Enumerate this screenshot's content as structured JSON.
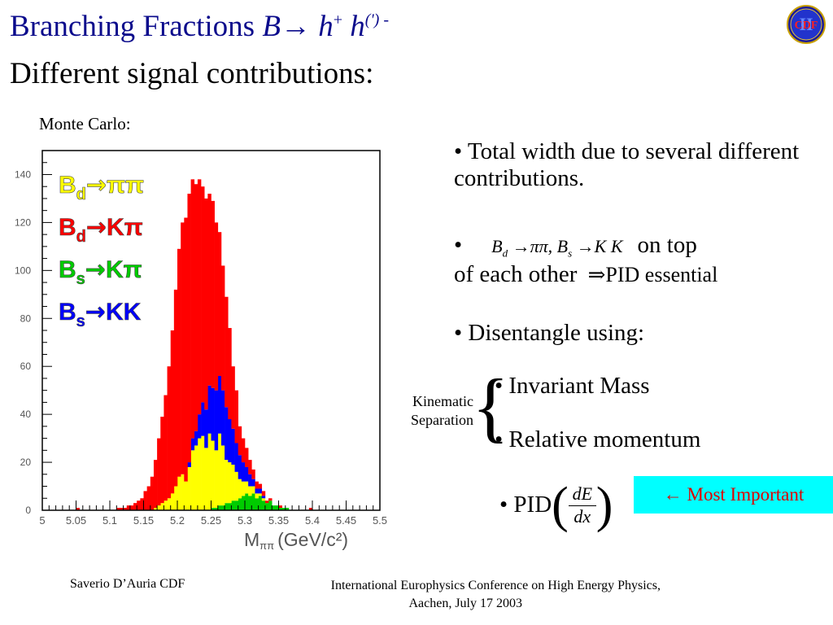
{
  "slide": {
    "title_main": "Branching Fractions ",
    "title_B": "B",
    "title_arrow": "→",
    "title_h1": " h",
    "title_sup1": "+",
    "title_h2": " h",
    "title_sup2": "(') -",
    "subtitle": "Different signal contributions:",
    "logo_text": "CDF",
    "logo_numeral": "II",
    "mc_label": "Monte Carlo:"
  },
  "bullets": {
    "b1": "• Total width due to several different contributions.",
    "b2_marker": "•",
    "b2_math": "B_d → ππ, B_s → K K",
    "b2_tail": "on top",
    "b2_line2": "of each other",
    "b2_implies": "⇒PID essential",
    "b3": "•  Disentangle using:",
    "b4": "• Invariant Mass",
    "b5": "• Relative momentum",
    "b6_marker": "•  PID",
    "b6_num": "dE",
    "b6_den": "dx",
    "kinematic_line1": "Kinematic",
    "kinematic_line2": "Separation",
    "most_important": "← Most Important"
  },
  "footer": {
    "left": "Saverio D’Auria CDF",
    "right_line1": "International Europhysics Conference on High Energy Physics,",
    "right_line2": "Aachen, July 17 2003"
  },
  "chart_data": {
    "type": "bar",
    "subtype": "stacked-histogram",
    "xlabel": "M",
    "xlabel_sub": "ππ",
    "xlabel_units": "(GeV/c²)",
    "ylabel": "",
    "xlim": [
      5.0,
      5.5
    ],
    "ylim": [
      0,
      150
    ],
    "x_ticks": [
      "5",
      "5.05",
      "5.1",
      "5.15",
      "5.2",
      "5.25",
      "5.3",
      "5.35",
      "5.4",
      "5.45",
      "5.5"
    ],
    "y_ticks": [
      "0",
      "20",
      "40",
      "60",
      "80",
      "100",
      "120",
      "140"
    ],
    "legend_placement": "top-left",
    "bin_width": 0.005,
    "bin_edges_start": 5.0,
    "colors": {
      "Bd_pipi": "#ffff00",
      "Bd_Kpi": "#ff0000",
      "Bs_Kpi": "#00cc00",
      "Bs_KK": "#0000ff"
    },
    "legend": [
      {
        "prefix": "B",
        "sub": "d",
        "arrow": "→",
        "final": "ππ",
        "color": "#ffff00"
      },
      {
        "prefix": "B",
        "sub": "d",
        "arrow": "→",
        "final": "Kπ",
        "color": "#ff0000"
      },
      {
        "prefix": "B",
        "sub": "s",
        "arrow": "→",
        "final": "Kπ",
        "color": "#00cc00"
      },
      {
        "prefix": "B",
        "sub": "s",
        "arrow": "→",
        "final": "KK",
        "color": "#0000ff"
      }
    ],
    "series": [
      {
        "name": "Bs→Kπ",
        "color": "#00cc00",
        "values": [
          0,
          0,
          0,
          0,
          0,
          0,
          0,
          0,
          0,
          0,
          0,
          0,
          0,
          0,
          0,
          0,
          0,
          0,
          0,
          0,
          0,
          0,
          0,
          0,
          0,
          0,
          0,
          0,
          0,
          0,
          0,
          0,
          0,
          0,
          0,
          0,
          0,
          0,
          0,
          0,
          0,
          0,
          0,
          0,
          0,
          0,
          0,
          0,
          0,
          0,
          1,
          1,
          2,
          2,
          3,
          3,
          4,
          4,
          5,
          6,
          7,
          6,
          7,
          5,
          6,
          4,
          3,
          4,
          2,
          2,
          1,
          1,
          1,
          0,
          0,
          0,
          0,
          0,
          0,
          0,
          0,
          0,
          0,
          0,
          0,
          0,
          0,
          0,
          0,
          0,
          0,
          0,
          0,
          0,
          0,
          0,
          0,
          0,
          0,
          0
        ]
      },
      {
        "name": "Bd→ππ",
        "color": "#ffff00",
        "values": [
          0,
          0,
          0,
          0,
          0,
          0,
          0,
          0,
          0,
          0,
          0,
          0,
          0,
          0,
          0,
          0,
          0,
          0,
          0,
          0,
          0,
          0,
          0,
          0,
          0,
          0,
          0,
          0,
          0,
          0,
          0,
          0,
          0,
          1,
          2,
          3,
          4,
          5,
          7,
          10,
          14,
          15,
          12,
          18,
          25,
          27,
          30,
          31,
          26,
          32,
          28,
          24,
          30,
          25,
          18,
          17,
          15,
          12,
          8,
          6,
          5,
          4,
          3,
          2,
          1,
          1,
          0,
          0,
          0,
          0,
          0,
          0,
          0,
          0,
          0,
          0,
          0,
          0,
          0,
          0,
          0,
          0,
          0,
          0,
          0,
          0,
          0,
          0,
          0,
          0,
          0,
          0,
          0,
          0,
          0,
          0,
          0,
          0,
          0,
          0
        ]
      },
      {
        "name": "Bs→KK",
        "color": "#0000ff",
        "values": [
          0,
          0,
          0,
          0,
          0,
          0,
          0,
          0,
          0,
          0,
          0,
          0,
          0,
          0,
          0,
          0,
          0,
          0,
          0,
          0,
          0,
          0,
          0,
          0,
          0,
          0,
          0,
          0,
          0,
          0,
          0,
          0,
          0,
          0,
          0,
          0,
          0,
          0,
          0,
          0,
          0,
          0,
          0,
          2,
          5,
          6,
          10,
          14,
          16,
          20,
          22,
          25,
          24,
          23,
          22,
          18,
          15,
          12,
          10,
          8,
          6,
          5,
          3,
          2,
          2,
          1,
          0,
          0,
          0,
          0,
          0,
          0,
          0,
          0,
          0,
          0,
          0,
          0,
          0,
          0,
          0,
          0,
          0,
          0,
          0,
          0,
          0,
          0,
          0,
          0,
          0,
          0,
          0,
          0,
          0,
          0,
          0,
          0,
          0,
          0
        ]
      },
      {
        "name": "Bd→Kπ",
        "color": "#ff0000",
        "values": [
          0,
          0,
          0,
          0,
          0,
          0,
          0,
          0,
          0,
          0,
          1,
          0,
          0,
          0,
          0,
          0,
          0,
          0,
          0,
          0,
          0,
          0,
          1,
          1,
          1,
          2,
          2,
          3,
          4,
          5,
          8,
          10,
          14,
          20,
          28,
          36,
          44,
          55,
          68,
          82,
          95,
          105,
          110,
          112,
          108,
          103,
          98,
          90,
          88,
          80,
          78,
          70,
          60,
          52,
          46,
          38,
          26,
          22,
          12,
          10,
          8,
          6,
          4,
          3,
          2,
          2,
          1,
          1,
          0,
          0,
          1,
          0,
          0,
          0,
          0,
          0,
          0,
          0,
          0,
          1,
          0,
          0,
          0,
          0,
          0,
          0,
          0,
          0,
          0,
          0,
          0,
          0,
          0,
          0,
          0,
          0,
          0,
          0,
          0,
          0
        ]
      }
    ]
  }
}
